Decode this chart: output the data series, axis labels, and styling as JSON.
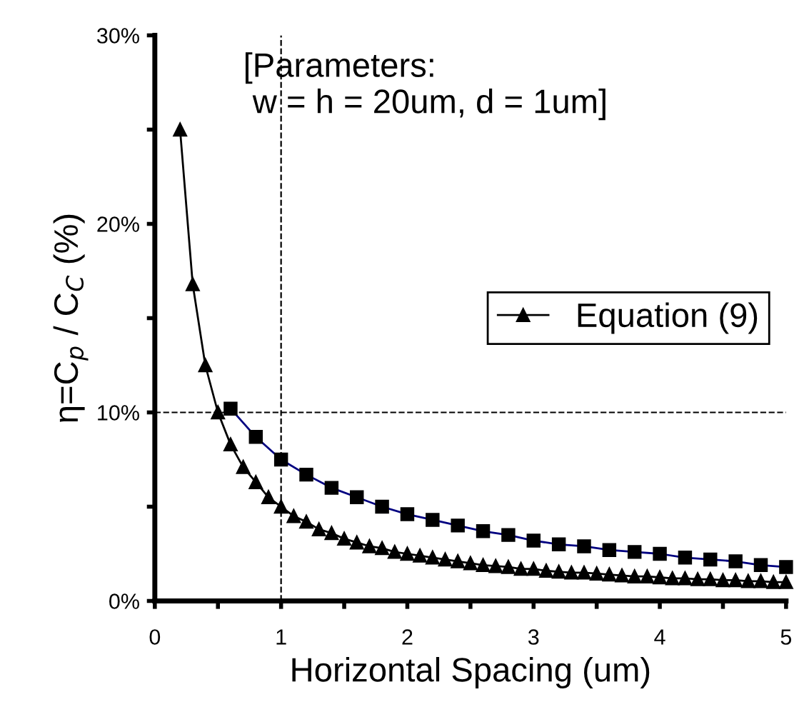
{
  "chart_data": {
    "type": "line",
    "ylabel": "η=C$_{p}$ / C$_{C}$ (%)",
    "xlabel": "Horizontal Spacing (um)",
    "annotations": [
      "[Parameters:\n w = h = 20um, d = 1um]"
    ],
    "xlim": [
      0,
      5
    ],
    "ylim": [
      0,
      30
    ],
    "xticks": [
      0,
      {
        "value": 0.5,
        "label": null
      },
      1,
      {
        "value": 1.5,
        "label": null
      },
      2,
      {
        "value": 2.5,
        "label": null
      },
      3,
      {
        "value": 3.5,
        "label": null
      },
      4,
      {
        "value": 4.5,
        "label": null
      },
      5
    ],
    "yticks": [
      {
        "value": 0,
        "label": "0%"
      },
      {
        "value": 5,
        "label": null
      },
      {
        "value": 10,
        "label": "10%"
      },
      {
        "value": 15,
        "label": null
      },
      {
        "value": 20,
        "label": "20%"
      },
      {
        "value": 25,
        "label": null
      },
      {
        "value": 30,
        "label": "30%"
      }
    ],
    "ref_lines": [
      {
        "axis": "y",
        "value": 10,
        "line_style": "dashed",
        "color": "#000000"
      },
      {
        "axis": "x",
        "value": 1,
        "line_style": "dashed",
        "color": "#000000"
      }
    ],
    "legend": "right",
    "grid": false,
    "line_style": "solid",
    "series": [
      {
        "color": "#000080",
        "marker": "square",
        "x": [
          0.6,
          0.8,
          1.0,
          1.2,
          1.4,
          1.6,
          1.8,
          2.0,
          2.2,
          2.4,
          2.6,
          2.8,
          3.0,
          3.2,
          3.4,
          3.6,
          3.8,
          4.0,
          4.2,
          4.4,
          4.6,
          4.8,
          5.0
        ],
        "values": [
          10.2,
          8.7,
          7.5,
          6.7,
          6.0,
          5.5,
          5.0,
          4.6,
          4.3,
          4.0,
          3.7,
          3.5,
          3.2,
          3.0,
          2.9,
          2.7,
          2.6,
          2.5,
          2.3,
          2.2,
          2.1,
          1.9,
          1.8
        ]
      },
      {
        "name": "Equation (9)",
        "color": "#000000",
        "marker": "triangle",
        "x": [
          0.2,
          0.3,
          0.4,
          0.5,
          0.6,
          0.7,
          0.8,
          0.9,
          1.0,
          1.1,
          1.2,
          1.3,
          1.4,
          1.5,
          1.6,
          1.7,
          1.8,
          1.9,
          2.0,
          2.1,
          2.2,
          2.3,
          2.4,
          2.5,
          2.6,
          2.7,
          2.8,
          2.9,
          3.0,
          3.1,
          3.2,
          3.3,
          3.4,
          3.5,
          3.6,
          3.7,
          3.8,
          3.9,
          4.0,
          4.1,
          4.2,
          4.3,
          4.4,
          4.5,
          4.6,
          4.7,
          4.8,
          4.9,
          5.0
        ],
        "values": [
          25,
          16.8,
          12.5,
          10.0,
          8.3,
          7.1,
          6.3,
          5.5,
          5.0,
          4.5,
          4.2,
          3.8,
          3.6,
          3.3,
          3.1,
          2.9,
          2.8,
          2.6,
          2.5,
          2.4,
          2.3,
          2.2,
          2.1,
          2.0,
          1.9,
          1.85,
          1.8,
          1.7,
          1.7,
          1.6,
          1.55,
          1.5,
          1.5,
          1.45,
          1.4,
          1.35,
          1.3,
          1.3,
          1.25,
          1.2,
          1.2,
          1.15,
          1.15,
          1.1,
          1.1,
          1.05,
          1.05,
          1.0,
          1.0
        ]
      }
    ]
  }
}
